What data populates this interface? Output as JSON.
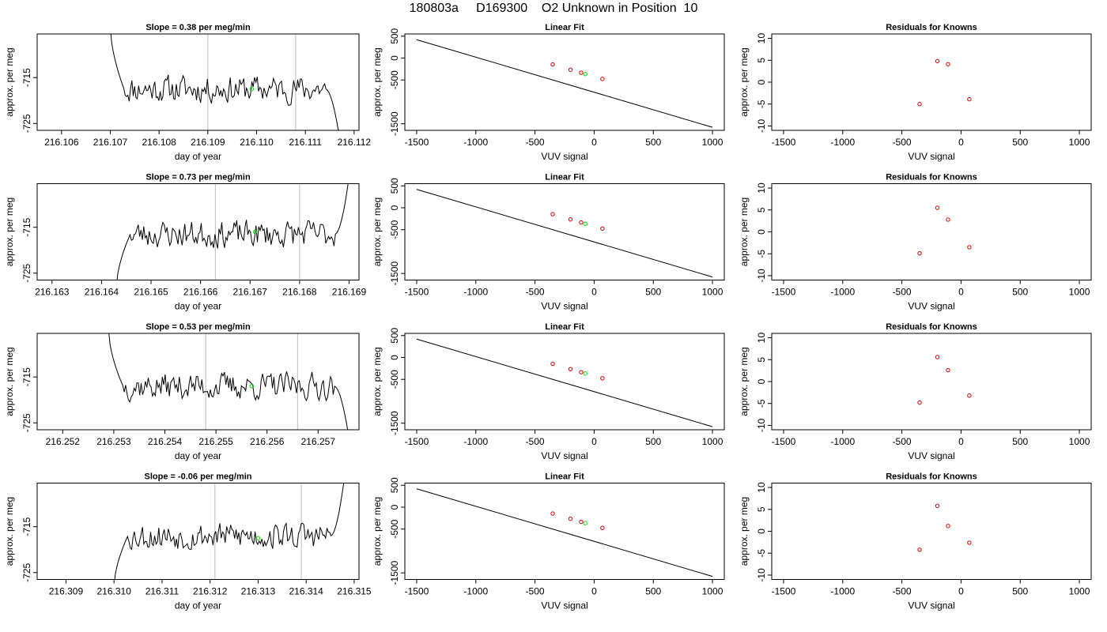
{
  "figure": {
    "title": "180803a     D169300    O2 Unknown in Position  10"
  },
  "chart_data": [
    {
      "type": "line",
      "panel": "timeseries",
      "row": 0,
      "title": "Slope =  0.38  per meg/min",
      "xlabel": "day of year",
      "ylabel": "approx. per meg",
      "xlim": [
        216.1055,
        216.1121
      ],
      "ylim": [
        -726.5,
        -705.5
      ],
      "xticks": [
        "216.106",
        "216.107",
        "216.108",
        "216.109",
        "216.110",
        "216.111",
        "216.112"
      ],
      "yticks": [
        "-715",
        "-725"
      ],
      "vlines": [
        216.109,
        216.1108
      ],
      "highlight_point": {
        "x": 216.1099,
        "y": -717.5,
        "color": "#00dd00"
      },
      "trace": {
        "start": 216.107,
        "end": 216.1117,
        "level": -717.5,
        "start_value": -704,
        "end_value": -728,
        "noise": 2.6,
        "seed": 11
      },
      "line_color": "#000000"
    },
    {
      "type": "scatter",
      "panel": "fit",
      "row": 0,
      "title": "Linear Fit",
      "xlabel": "VUV signal",
      "ylabel": "approx. per meg",
      "xlim": [
        -1600,
        1100
      ],
      "ylim": [
        -1650,
        550
      ],
      "xticks": [
        "-1500",
        "-1000",
        "-500",
        "0",
        "500",
        "1000"
      ],
      "yticks": [
        "500",
        "0",
        "-500",
        "-1500"
      ],
      "fit_line": {
        "x": [
          -1500,
          1000
        ],
        "y": [
          420,
          -1580
        ]
      },
      "knowns": {
        "x": [
          -350,
          -200,
          -110,
          70
        ],
        "y": [
          -145,
          -265,
          -335,
          -475
        ],
        "color": "#cc0000"
      },
      "unknown": {
        "x": -75,
        "y": -365,
        "color": "#00dd00"
      }
    },
    {
      "type": "scatter",
      "panel": "residuals",
      "row": 0,
      "title": "Residuals for Knowns",
      "xlabel": "VUV signal",
      "ylabel": "approx. per meg",
      "xlim": [
        -1600,
        1100
      ],
      "ylim": [
        -11,
        11
      ],
      "xticks": [
        "-1500",
        "-1000",
        "-500",
        "0",
        "500",
        "1000"
      ],
      "yticks": [
        "10",
        "5",
        "0",
        "-5",
        "-10"
      ],
      "points": {
        "x": [
          -350,
          -200,
          -110,
          70
        ],
        "y": [
          -5,
          4.8,
          4.1,
          -3.9
        ],
        "color": "#cc0000"
      }
    },
    {
      "type": "line",
      "panel": "timeseries",
      "row": 1,
      "title": "Slope =  0.73  per meg/min",
      "xlabel": "day of year",
      "ylabel": "approx. per meg",
      "xlim": [
        216.1627,
        216.1692
      ],
      "ylim": [
        -726.5,
        -705.5
      ],
      "xticks": [
        "216.163",
        "216.164",
        "216.165",
        "216.166",
        "216.167",
        "216.168",
        "216.169"
      ],
      "yticks": [
        "-715",
        "-725"
      ],
      "vlines": [
        216.1663,
        216.168
      ],
      "highlight_point": {
        "x": 216.1671,
        "y": -716.0,
        "color": "#00dd00"
      },
      "trace": {
        "start": 216.1643,
        "end": 216.169,
        "level": -716.5,
        "start_value": -728,
        "end_value": -704,
        "noise": 2.6,
        "seed": 23
      },
      "line_color": "#000000"
    },
    {
      "type": "scatter",
      "panel": "fit",
      "row": 1,
      "title": "Linear Fit",
      "xlabel": "VUV signal",
      "ylabel": "approx. per meg",
      "xlim": [
        -1600,
        1100
      ],
      "ylim": [
        -1650,
        550
      ],
      "xticks": [
        "-1500",
        "-1000",
        "-500",
        "0",
        "500",
        "1000"
      ],
      "yticks": [
        "500",
        "0",
        "-500",
        "-1500"
      ],
      "fit_line": {
        "x": [
          -1500,
          1000
        ],
        "y": [
          420,
          -1580
        ]
      },
      "knowns": {
        "x": [
          -350,
          -200,
          -110,
          70
        ],
        "y": [
          -145,
          -265,
          -335,
          -475
        ],
        "color": "#cc0000"
      },
      "unknown": {
        "x": -75,
        "y": -365,
        "color": "#00dd00"
      }
    },
    {
      "type": "scatter",
      "panel": "residuals",
      "row": 1,
      "title": "Residuals for Knowns",
      "xlabel": "VUV signal",
      "ylabel": "approx. per meg",
      "xlim": [
        -1600,
        1100
      ],
      "ylim": [
        -11,
        11
      ],
      "xticks": [
        "-1500",
        "-1000",
        "-500",
        "0",
        "500",
        "1000"
      ],
      "yticks": [
        "10",
        "5",
        "0",
        "-5",
        "-10"
      ],
      "points": {
        "x": [
          -350,
          -200,
          -110,
          70
        ],
        "y": [
          -4.9,
          5.5,
          2.8,
          -3.5
        ],
        "color": "#cc0000"
      }
    },
    {
      "type": "line",
      "panel": "timeseries",
      "row": 2,
      "title": "Slope =  0.53  per meg/min",
      "xlabel": "day of year",
      "ylabel": "approx. per meg",
      "xlim": [
        216.2515,
        216.2578
      ],
      "ylim": [
        -726.5,
        -705.5
      ],
      "xticks": [
        "216.252",
        "216.253",
        "216.254",
        "216.255",
        "216.256",
        "216.257"
      ],
      "yticks": [
        "-715",
        "-725"
      ],
      "vlines": [
        216.2548,
        216.2566
      ],
      "highlight_point": {
        "x": 216.2557,
        "y": -717.0,
        "color": "#00dd00"
      },
      "trace": {
        "start": 216.2529,
        "end": 216.2576,
        "level": -717.0,
        "start_value": -705,
        "end_value": -728,
        "noise": 2.6,
        "seed": 37
      },
      "line_color": "#000000"
    },
    {
      "type": "scatter",
      "panel": "fit",
      "row": 2,
      "title": "Linear Fit",
      "xlabel": "VUV signal",
      "ylabel": "approx. per meg",
      "xlim": [
        -1600,
        1100
      ],
      "ylim": [
        -1650,
        550
      ],
      "xticks": [
        "-1500",
        "-1000",
        "-500",
        "0",
        "500",
        "1000"
      ],
      "yticks": [
        "500",
        "0",
        "-500",
        "-1500"
      ],
      "fit_line": {
        "x": [
          -1500,
          1000
        ],
        "y": [
          420,
          -1580
        ]
      },
      "knowns": {
        "x": [
          -350,
          -200,
          -110,
          70
        ],
        "y": [
          -145,
          -265,
          -335,
          -475
        ],
        "color": "#cc0000"
      },
      "unknown": {
        "x": -75,
        "y": -365,
        "color": "#00dd00"
      }
    },
    {
      "type": "scatter",
      "panel": "residuals",
      "row": 2,
      "title": "Residuals for Knowns",
      "xlabel": "VUV signal",
      "ylabel": "approx. per meg",
      "xlim": [
        -1600,
        1100
      ],
      "ylim": [
        -11,
        11
      ],
      "xticks": [
        "-1500",
        "-1000",
        "-500",
        "0",
        "500",
        "1000"
      ],
      "yticks": [
        "10",
        "5",
        "0",
        "-5",
        "-10"
      ],
      "points": {
        "x": [
          -350,
          -200,
          -110,
          70
        ],
        "y": [
          -4.8,
          5.6,
          2.6,
          -3.2
        ],
        "color": "#cc0000"
      }
    },
    {
      "type": "line",
      "panel": "timeseries",
      "row": 3,
      "title": "Slope =  -0.06  per meg/min",
      "xlabel": "day of year",
      "ylabel": "approx. per meg",
      "xlim": [
        216.3084,
        216.3151
      ],
      "ylim": [
        -726.5,
        -705.5
      ],
      "xticks": [
        "216.309",
        "216.310",
        "216.311",
        "216.312",
        "216.313",
        "216.314",
        "216.315"
      ],
      "yticks": [
        "-715",
        "-725"
      ],
      "vlines": [
        216.3121,
        216.3139
      ],
      "highlight_point": {
        "x": 216.313,
        "y": -717.5,
        "color": "#00dd00"
      },
      "trace": {
        "start": 216.31,
        "end": 216.3148,
        "level": -717.0,
        "start_value": -728,
        "end_value": -704,
        "noise": 2.6,
        "seed": 53
      },
      "line_color": "#000000"
    },
    {
      "type": "scatter",
      "panel": "fit",
      "row": 3,
      "title": "Linear Fit",
      "xlabel": "VUV signal",
      "ylabel": "approx. per meg",
      "xlim": [
        -1600,
        1100
      ],
      "ylim": [
        -1650,
        550
      ],
      "xticks": [
        "-1500",
        "-1000",
        "-500",
        "0",
        "500",
        "1000"
      ],
      "yticks": [
        "500",
        "0",
        "-500",
        "-1500"
      ],
      "fit_line": {
        "x": [
          -1500,
          1000
        ],
        "y": [
          420,
          -1580
        ]
      },
      "knowns": {
        "x": [
          -350,
          -200,
          -110,
          70
        ],
        "y": [
          -145,
          -265,
          -335,
          -475
        ],
        "color": "#cc0000"
      },
      "unknown": {
        "x": -75,
        "y": -365,
        "color": "#00dd00"
      }
    },
    {
      "type": "scatter",
      "panel": "residuals",
      "row": 3,
      "title": "Residuals for Knowns",
      "xlabel": "VUV signal",
      "ylabel": "approx. per meg",
      "xlim": [
        -1600,
        1100
      ],
      "ylim": [
        -11,
        11
      ],
      "xticks": [
        "-1500",
        "-1000",
        "-500",
        "0",
        "500",
        "1000"
      ],
      "yticks": [
        "10",
        "5",
        "0",
        "-5",
        "-10"
      ],
      "points": {
        "x": [
          -350,
          -200,
          -110,
          70
        ],
        "y": [
          -4.2,
          5.8,
          1.2,
          -2.6
        ],
        "color": "#cc0000"
      }
    }
  ]
}
